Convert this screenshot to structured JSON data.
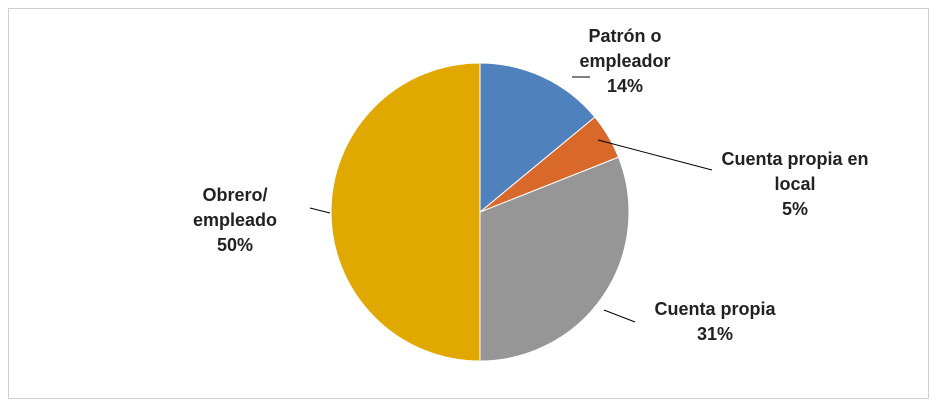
{
  "chart_data": {
    "type": "pie",
    "categories": [
      "Patrón o empleador",
      "Cuenta propia en local",
      "Cuenta propia",
      "Obrero/ empleado"
    ],
    "values": [
      14,
      5,
      31,
      50
    ],
    "value_labels": [
      "14%",
      "5%",
      "31%",
      "50%"
    ],
    "colors": [
      "#4f81bd",
      "#d9692a",
      "#969696",
      "#e0a800"
    ]
  }
}
